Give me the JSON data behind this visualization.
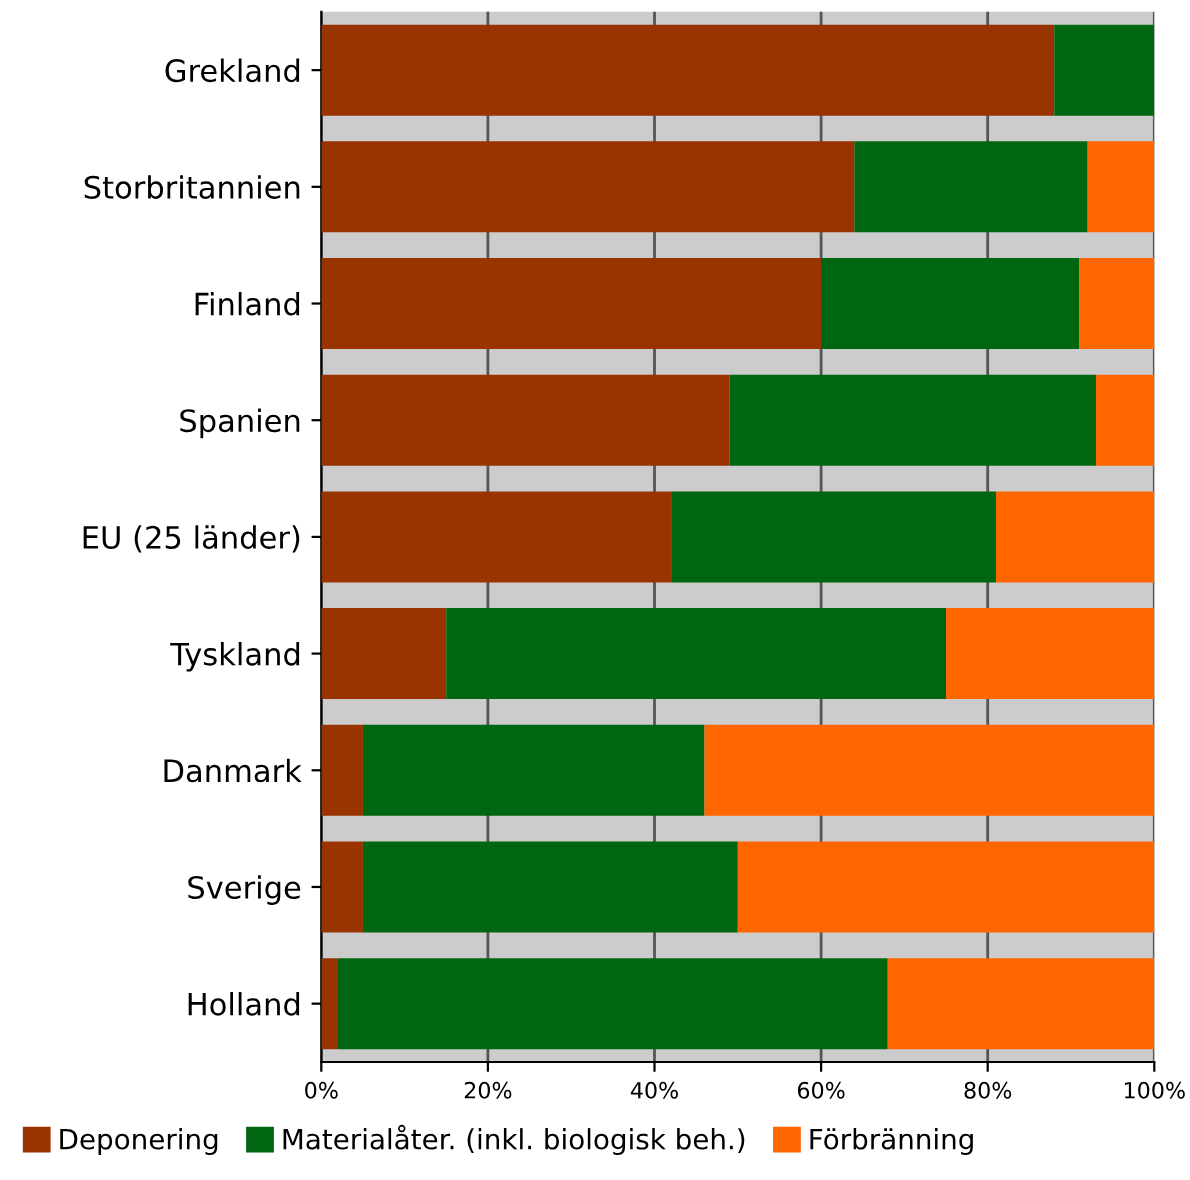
{
  "chart_data": {
    "type": "bar",
    "orientation": "horizontal",
    "stacked": true,
    "categories": [
      "Grekland",
      "Storbritannien",
      "Finland",
      "Spanien",
      "EU (25 länder)",
      "Tyskland",
      "Danmark",
      "Sverige",
      "Holland"
    ],
    "series": [
      {
        "name": "Deponering",
        "color": "#993300",
        "values": [
          88,
          64,
          60,
          49,
          42,
          15,
          5,
          5,
          2
        ]
      },
      {
        "name": "Materialåter. (inkl. biologisk beh.)",
        "color": "#006611",
        "values": [
          12,
          28,
          31,
          44,
          39,
          60,
          41,
          45,
          66
        ]
      },
      {
        "name": "Förbränning",
        "color": "#ff6600",
        "values": [
          0,
          8,
          9,
          7,
          19,
          25,
          54,
          50,
          32
        ]
      }
    ],
    "xlim": [
      0,
      100
    ],
    "xticks": [
      {
        "value": 0,
        "label": "0%"
      },
      {
        "value": 20,
        "label": "20%"
      },
      {
        "value": 40,
        "label": "40%"
      },
      {
        "value": 60,
        "label": "60%"
      },
      {
        "value": 80,
        "label": "80%"
      },
      {
        "value": 100,
        "label": "100%"
      }
    ],
    "grid": "x",
    "legend": "bottom"
  }
}
